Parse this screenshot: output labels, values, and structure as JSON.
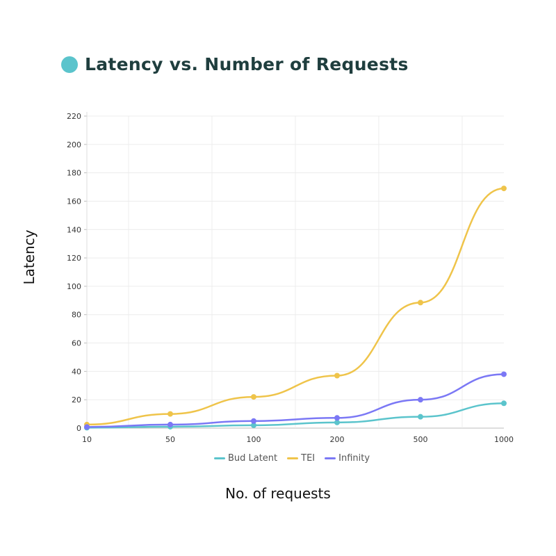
{
  "chart_data": {
    "type": "line",
    "title": "Latency vs. Number of Requests",
    "xlabel": "No. of requests",
    "ylabel": "Latency",
    "categories": [
      "10",
      "50",
      "100",
      "200",
      "500",
      "1000"
    ],
    "ylim": [
      0,
      220
    ],
    "yticks": [
      0,
      20,
      40,
      60,
      80,
      100,
      120,
      140,
      160,
      180,
      200,
      220
    ],
    "grid": true,
    "legend_position": "bottom",
    "series": [
      {
        "name": "Bud Latent",
        "color": "#5bc4cc",
        "values": [
          0.3,
          1,
          2,
          4,
          8,
          17.5
        ]
      },
      {
        "name": "TEI",
        "color": "#efc44a",
        "values": [
          2.5,
          10,
          22,
          37,
          88.5,
          169
        ]
      },
      {
        "name": "Infinity",
        "color": "#7b78f5",
        "values": [
          0.8,
          2.5,
          5,
          7.2,
          20,
          38
        ]
      }
    ]
  },
  "title_dot_color": "#5bc4cc"
}
